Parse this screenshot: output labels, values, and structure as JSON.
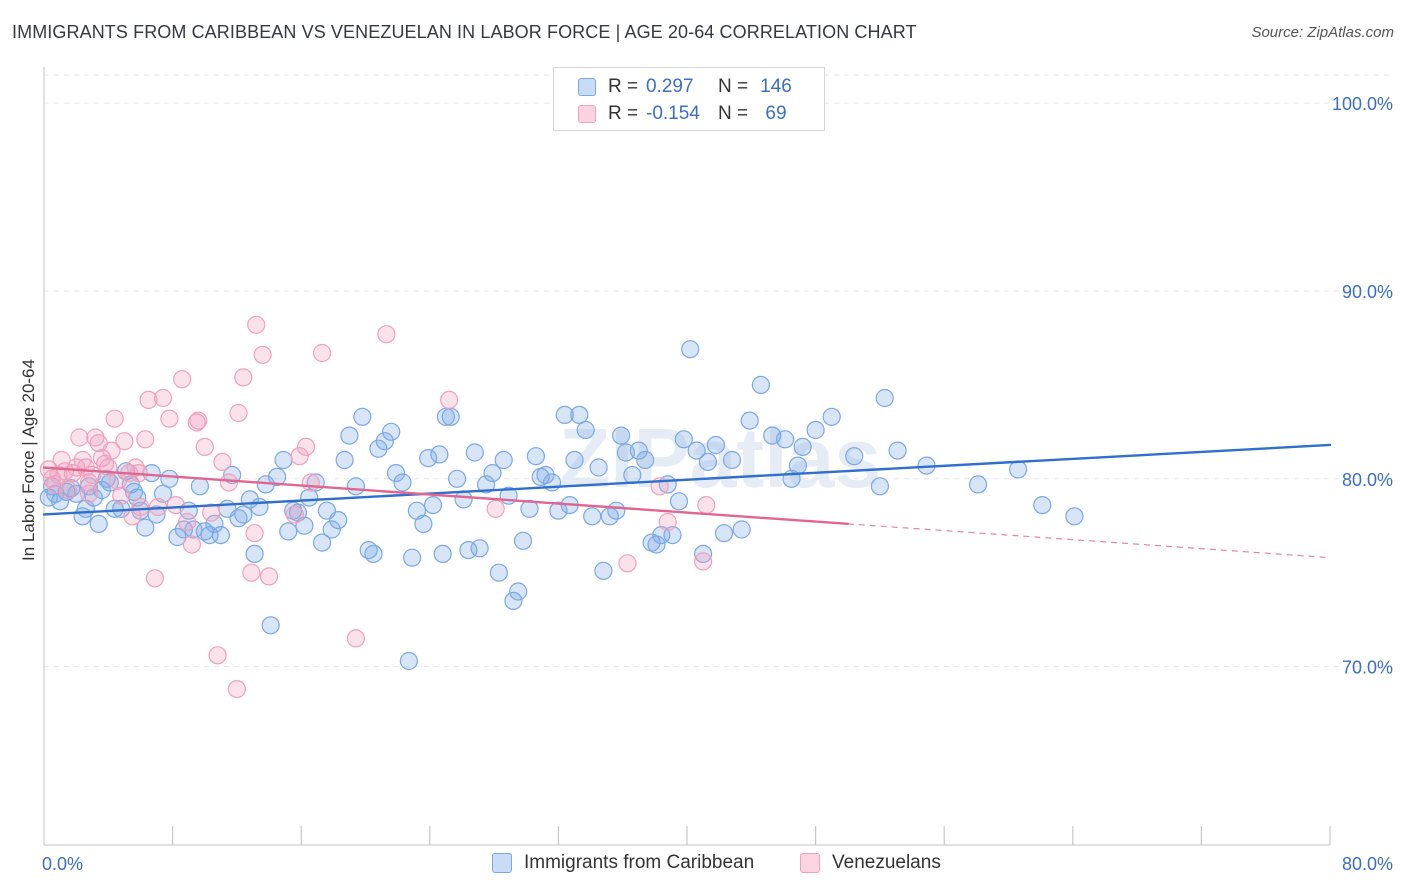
{
  "header": {
    "title": "IMMIGRANTS FROM CARIBBEAN VS VENEZUELAN IN LABOR FORCE | AGE 20-64 CORRELATION CHART",
    "source": "Source: ZipAtlas.com"
  },
  "stats": {
    "rows": [
      {
        "r_label": "R =",
        "r_value": "0.297",
        "n_label": "N =",
        "n_value": "146",
        "color": "#7aa8e6"
      },
      {
        "r_label": "R =",
        "r_value": "-0.154",
        "n_label": "N =",
        "n_value": "69",
        "color": "#f0a0bc"
      }
    ]
  },
  "watermark": "ZIPatlas",
  "chart_data": {
    "type": "scatter",
    "title": "IMMIGRANTS FROM CARIBBEAN VS VENEZUELAN IN LABOR FORCE | AGE 20-64 CORRELATION CHART",
    "xlabel": "",
    "ylabel": "In Labor Force | Age 20-64",
    "xlim": [
      0,
      80
    ],
    "ylim": [
      60.5,
      101.5
    ],
    "x_tick_labels": [
      "0.0%",
      "80.0%"
    ],
    "y_ticks": [
      70,
      80,
      90,
      100
    ],
    "y_tick_labels": [
      "70.0%",
      "80.0%",
      "90.0%",
      "100.0%"
    ],
    "legend_position": "bottom-center",
    "series": [
      {
        "name": "Immigrants from Caribbean",
        "color": "#7aa8e6",
        "line_color": "#2f6fce",
        "trend": {
          "x0": 0,
          "y0": 78.1,
          "x1": 80,
          "y1": 81.8
        },
        "points": [
          [
            0.3,
            79.0
          ],
          [
            0.5,
            79.6
          ],
          [
            0.7,
            79.2
          ],
          [
            1.0,
            78.8
          ],
          [
            1.4,
            79.3
          ],
          [
            1.7,
            79.5
          ],
          [
            2.0,
            79.2
          ],
          [
            2.4,
            78.0
          ],
          [
            2.6,
            78.4
          ],
          [
            2.8,
            79.6
          ],
          [
            3.1,
            79.0
          ],
          [
            3.4,
            77.6
          ],
          [
            3.6,
            79.4
          ],
          [
            3.9,
            80.0
          ],
          [
            4.1,
            79.8
          ],
          [
            4.4,
            78.4
          ],
          [
            4.8,
            78.4
          ],
          [
            5.1,
            80.4
          ],
          [
            5.4,
            79.7
          ],
          [
            5.6,
            79.3
          ],
          [
            5.8,
            79.0
          ],
          [
            6.0,
            78.3
          ],
          [
            6.3,
            77.4
          ],
          [
            6.7,
            80.3
          ],
          [
            7.0,
            78.1
          ],
          [
            7.4,
            79.2
          ],
          [
            7.8,
            80.0
          ],
          [
            8.3,
            76.9
          ],
          [
            8.7,
            77.3
          ],
          [
            9.0,
            78.3
          ],
          [
            9.3,
            77.3
          ],
          [
            9.7,
            79.6
          ],
          [
            10.0,
            77.2
          ],
          [
            10.3,
            77.0
          ],
          [
            10.6,
            77.6
          ],
          [
            11.0,
            77.0
          ],
          [
            11.4,
            78.4
          ],
          [
            11.7,
            80.2
          ],
          [
            12.1,
            77.9
          ],
          [
            12.4,
            78.1
          ],
          [
            12.8,
            78.9
          ],
          [
            13.1,
            76.0
          ],
          [
            13.4,
            78.5
          ],
          [
            13.8,
            79.7
          ],
          [
            14.1,
            72.2
          ],
          [
            14.5,
            80.1
          ],
          [
            14.9,
            81.0
          ],
          [
            15.2,
            77.2
          ],
          [
            15.5,
            78.3
          ],
          [
            15.8,
            78.2
          ],
          [
            16.2,
            77.5
          ],
          [
            16.5,
            79.0
          ],
          [
            16.9,
            79.8
          ],
          [
            17.3,
            76.6
          ],
          [
            17.6,
            78.3
          ],
          [
            17.9,
            77.3
          ],
          [
            18.3,
            77.8
          ],
          [
            18.7,
            81.0
          ],
          [
            19.0,
            82.3
          ],
          [
            19.4,
            79.6
          ],
          [
            19.8,
            83.3
          ],
          [
            20.2,
            76.2
          ],
          [
            20.5,
            76.0
          ],
          [
            20.8,
            81.6
          ],
          [
            21.2,
            82.0
          ],
          [
            21.6,
            82.5
          ],
          [
            21.9,
            80.3
          ],
          [
            22.3,
            79.8
          ],
          [
            22.7,
            70.3
          ],
          [
            22.9,
            75.8
          ],
          [
            23.2,
            78.3
          ],
          [
            23.6,
            77.6
          ],
          [
            23.9,
            81.1
          ],
          [
            24.2,
            78.6
          ],
          [
            24.6,
            81.3
          ],
          [
            24.8,
            76.0
          ],
          [
            25.0,
            83.3
          ],
          [
            25.3,
            83.3
          ],
          [
            25.7,
            80.0
          ],
          [
            26.1,
            78.9
          ],
          [
            26.4,
            76.2
          ],
          [
            26.8,
            81.4
          ],
          [
            27.1,
            76.3
          ],
          [
            27.5,
            79.7
          ],
          [
            27.9,
            80.3
          ],
          [
            28.3,
            75.0
          ],
          [
            28.6,
            81.0
          ],
          [
            28.9,
            79.1
          ],
          [
            29.2,
            73.5
          ],
          [
            29.5,
            74.0
          ],
          [
            29.8,
            76.7
          ],
          [
            30.2,
            78.4
          ],
          [
            30.6,
            81.2
          ],
          [
            30.9,
            80.1
          ],
          [
            31.2,
            80.2
          ],
          [
            31.6,
            79.8
          ],
          [
            32.0,
            78.3
          ],
          [
            32.4,
            83.4
          ],
          [
            32.7,
            78.6
          ],
          [
            33.0,
            81.0
          ],
          [
            33.3,
            83.4
          ],
          [
            33.7,
            82.6
          ],
          [
            34.1,
            78.0
          ],
          [
            34.5,
            80.6
          ],
          [
            34.8,
            75.1
          ],
          [
            35.2,
            78.0
          ],
          [
            35.6,
            78.3
          ],
          [
            35.9,
            82.3
          ],
          [
            36.2,
            81.4
          ],
          [
            36.6,
            80.2
          ],
          [
            37.0,
            81.5
          ],
          [
            37.4,
            81.0
          ],
          [
            37.8,
            76.6
          ],
          [
            38.1,
            76.5
          ],
          [
            38.4,
            77.0
          ],
          [
            38.8,
            79.7
          ],
          [
            39.1,
            77.0
          ],
          [
            39.5,
            78.8
          ],
          [
            39.8,
            82.1
          ],
          [
            40.2,
            86.9
          ],
          [
            40.6,
            81.5
          ],
          [
            41.0,
            76.0
          ],
          [
            41.3,
            80.9
          ],
          [
            41.8,
            81.8
          ],
          [
            42.3,
            77.1
          ],
          [
            42.8,
            81.0
          ],
          [
            43.4,
            77.3
          ],
          [
            43.9,
            83.1
          ],
          [
            44.6,
            85.0
          ],
          [
            45.3,
            82.3
          ],
          [
            46.1,
            82.1
          ],
          [
            46.5,
            80.0
          ],
          [
            46.9,
            80.7
          ],
          [
            47.2,
            81.7
          ],
          [
            48.0,
            82.6
          ],
          [
            49.0,
            83.3
          ],
          [
            50.4,
            81.2
          ],
          [
            52.0,
            79.6
          ],
          [
            52.3,
            84.3
          ],
          [
            53.1,
            81.5
          ],
          [
            54.9,
            80.7
          ],
          [
            58.1,
            79.7
          ],
          [
            60.6,
            80.5
          ],
          [
            62.1,
            78.6
          ],
          [
            64.1,
            78.0
          ]
        ]
      },
      {
        "name": "Venezuelans",
        "color": "#f0a0bc",
        "line_color": "#e0658f",
        "trend": {
          "x0": 0,
          "y0": 80.6,
          "x1": 50,
          "y1": 77.6
        },
        "trend_ext": {
          "x0": 50,
          "y0": 77.6,
          "x1": 80,
          "y1": 75.8
        },
        "points": [
          [
            0.3,
            80.5
          ],
          [
            0.5,
            80.0
          ],
          [
            0.7,
            79.7
          ],
          [
            0.9,
            80.2
          ],
          [
            1.1,
            81.0
          ],
          [
            1.3,
            80.4
          ],
          [
            1.5,
            79.4
          ],
          [
            1.8,
            80.3
          ],
          [
            2.0,
            80.6
          ],
          [
            2.2,
            82.2
          ],
          [
            2.4,
            81.0
          ],
          [
            2.6,
            80.6
          ],
          [
            2.8,
            79.2
          ],
          [
            3.0,
            80.2
          ],
          [
            3.2,
            82.2
          ],
          [
            3.4,
            81.9
          ],
          [
            3.6,
            81.1
          ],
          [
            3.8,
            80.8
          ],
          [
            4.0,
            80.6
          ],
          [
            4.2,
            81.5
          ],
          [
            4.4,
            83.2
          ],
          [
            4.6,
            79.9
          ],
          [
            4.8,
            79.1
          ],
          [
            5.0,
            82.0
          ],
          [
            5.3,
            80.3
          ],
          [
            5.5,
            78.0
          ],
          [
            5.7,
            80.6
          ],
          [
            6.0,
            78.5
          ],
          [
            6.3,
            82.1
          ],
          [
            6.5,
            84.2
          ],
          [
            6.9,
            74.7
          ],
          [
            7.1,
            78.5
          ],
          [
            7.4,
            84.3
          ],
          [
            7.8,
            83.2
          ],
          [
            8.2,
            78.6
          ],
          [
            8.6,
            85.3
          ],
          [
            8.9,
            77.7
          ],
          [
            9.2,
            76.5
          ],
          [
            9.6,
            83.1
          ],
          [
            10.0,
            81.7
          ],
          [
            10.4,
            78.2
          ],
          [
            10.8,
            70.6
          ],
          [
            11.1,
            80.9
          ],
          [
            11.5,
            79.8
          ],
          [
            12.1,
            83.5
          ],
          [
            12.4,
            85.4
          ],
          [
            12.9,
            75.0
          ],
          [
            13.2,
            88.2
          ],
          [
            13.6,
            86.6
          ],
          [
            14.0,
            74.8
          ],
          [
            12.0,
            68.8
          ],
          [
            15.6,
            78.1
          ],
          [
            15.9,
            81.2
          ],
          [
            16.3,
            81.7
          ],
          [
            16.6,
            79.8
          ],
          [
            17.3,
            86.7
          ],
          [
            19.4,
            71.5
          ],
          [
            21.3,
            87.7
          ],
          [
            25.2,
            84.2
          ],
          [
            28.1,
            78.4
          ],
          [
            36.3,
            75.5
          ],
          [
            38.3,
            79.6
          ],
          [
            38.8,
            77.7
          ],
          [
            41.0,
            75.6
          ],
          [
            41.2,
            78.6
          ],
          [
            2.8,
            79.8
          ],
          [
            5.9,
            80.3
          ],
          [
            9.5,
            83.0
          ],
          [
            13.1,
            77.1
          ]
        ]
      }
    ]
  },
  "legend": {
    "items": [
      {
        "label": "Immigrants from Caribbean",
        "color": "#7aa8e6"
      },
      {
        "label": "Venezuelans",
        "color": "#f0a0bc"
      }
    ]
  }
}
